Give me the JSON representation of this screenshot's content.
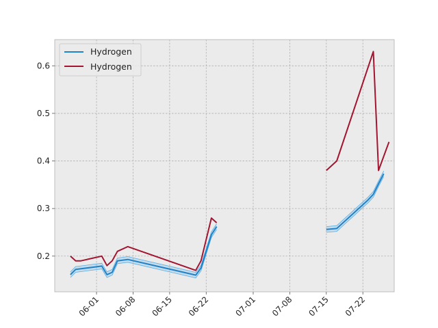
{
  "chart_data": {
    "type": "line",
    "grid": true,
    "legend": "top-left",
    "xlim": [
      "2022-05-24",
      "2022-07-28"
    ],
    "ylim": [
      0.125,
      0.655
    ],
    "x_ticks": [
      "06-01",
      "06-08",
      "06-15",
      "06-22",
      "07-01",
      "07-08",
      "07-15",
      "07-22"
    ],
    "x_tick_dates": [
      "2022-06-01",
      "2022-06-08",
      "2022-06-15",
      "2022-06-22",
      "2022-07-01",
      "2022-07-08",
      "2022-07-15",
      "2022-07-22"
    ],
    "y_ticks": [
      "0.2",
      "0.3",
      "0.4",
      "0.5",
      "0.6"
    ],
    "y_tick_values": [
      0.2,
      0.3,
      0.4,
      0.5,
      0.6
    ],
    "colors": {
      "blue": "#1f82c8",
      "band": "#5aaee6",
      "red": "#a2142f",
      "background": "#ebebeb",
      "grid": "#b0b0b0"
    },
    "series": [
      {
        "name": "Hydrogen",
        "color": "#1f82c8",
        "segments": [
          [
            [
              "2022-05-27",
              0.161
            ],
            [
              "2022-05-28",
              0.172
            ],
            [
              "2022-06-02",
              0.179
            ],
            [
              "2022-06-03",
              0.161
            ],
            [
              "2022-06-04",
              0.166
            ],
            [
              "2022-06-05",
              0.19
            ],
            [
              "2022-06-07",
              0.193
            ],
            [
              "2022-06-20",
              0.16
            ],
            [
              "2022-06-21",
              0.175
            ],
            [
              "2022-06-23",
              0.245
            ],
            [
              "2022-06-24",
              0.262
            ]
          ],
          [
            [
              "2022-07-15",
              0.256
            ],
            [
              "2022-07-17",
              0.258
            ],
            [
              "2022-07-23",
              0.318
            ],
            [
              "2022-07-24",
              0.33
            ],
            [
              "2022-07-25",
              0.352
            ],
            [
              "2022-07-26",
              0.373
            ]
          ]
        ]
      },
      {
        "name": "Hydrogen",
        "color": "#a2142f",
        "segments": [
          [
            [
              "2022-05-27",
              0.2
            ],
            [
              "2022-05-28",
              0.19
            ],
            [
              "2022-05-29",
              0.19
            ],
            [
              "2022-06-02",
              0.2
            ],
            [
              "2022-06-03",
              0.18
            ],
            [
              "2022-06-04",
              0.19
            ],
            [
              "2022-06-05",
              0.21
            ],
            [
              "2022-06-07",
              0.22
            ],
            [
              "2022-06-20",
              0.17
            ],
            [
              "2022-06-21",
              0.19
            ],
            [
              "2022-06-23",
              0.28
            ],
            [
              "2022-06-24",
              0.27
            ]
          ],
          [
            [
              "2022-07-15",
              0.38
            ],
            [
              "2022-07-17",
              0.4
            ],
            [
              "2022-07-24",
              0.63
            ],
            [
              "2022-07-25",
              0.38
            ],
            [
              "2022-07-27",
              0.44
            ]
          ]
        ]
      }
    ]
  }
}
